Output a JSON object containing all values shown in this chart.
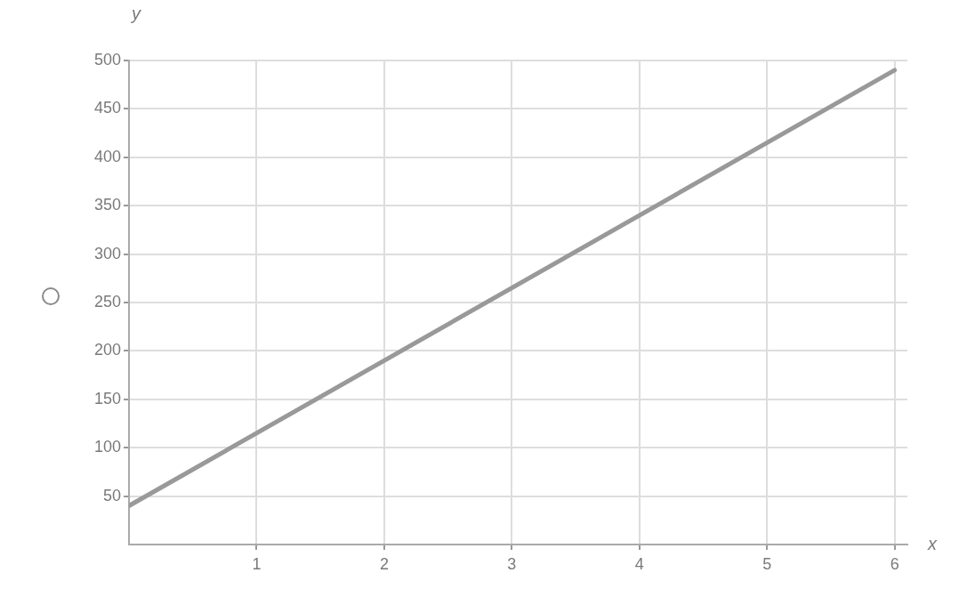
{
  "chart_data": {
    "type": "line",
    "xlabel": "x",
    "ylabel": "y",
    "x": [
      0,
      6
    ],
    "series": [
      {
        "color": "#999999",
        "values": [
          40,
          490
        ]
      }
    ],
    "xlim": [
      0,
      6.1
    ],
    "ylim": [
      0,
      500
    ],
    "xticks": [
      1,
      2,
      3,
      4,
      5,
      6
    ],
    "yticks": [
      50,
      100,
      150,
      200,
      250,
      300,
      350,
      400,
      450,
      500
    ],
    "grid": true
  }
}
